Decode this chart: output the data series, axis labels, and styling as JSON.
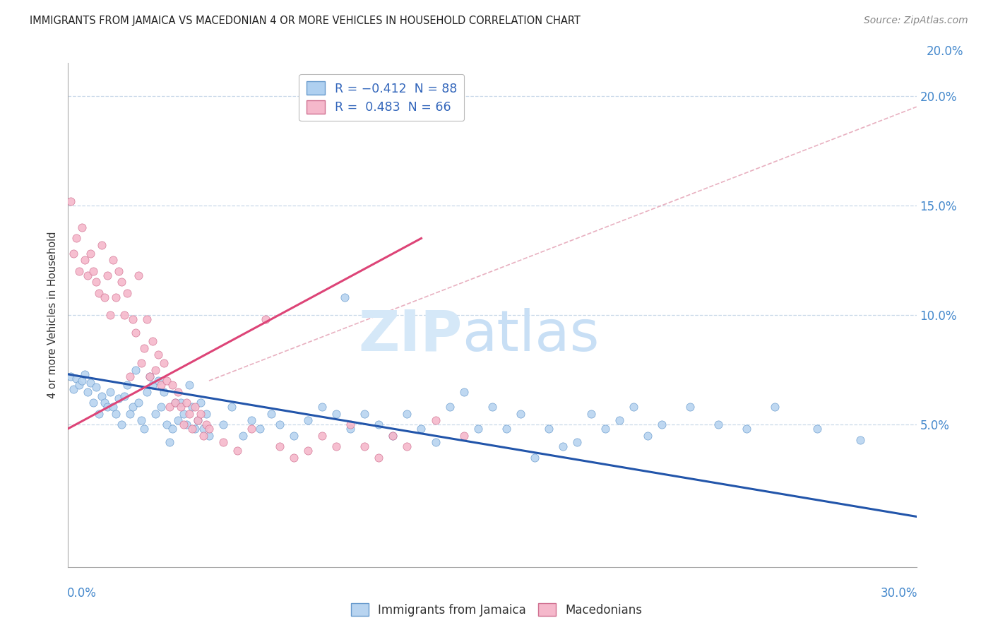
{
  "title": "IMMIGRANTS FROM JAMAICA VS MACEDONIAN 4 OR MORE VEHICLES IN HOUSEHOLD CORRELATION CHART",
  "source": "Source: ZipAtlas.com",
  "ylabel": "4 or more Vehicles in Household",
  "xlim": [
    0.0,
    0.3
  ],
  "ylim": [
    -0.015,
    0.215
  ],
  "yplot_min": 0.0,
  "yplot_max": 0.2,
  "right_ytick_vals": [
    0.2,
    0.15,
    0.1,
    0.05
  ],
  "right_ytick_labels": [
    "20.0%",
    "15.0%",
    "10.0%",
    "5.0%"
  ],
  "right_ytick_top": "20.0%",
  "legend_r1": "R = −0.412  N = 88",
  "legend_r2": "R =  0.483  N = 66",
  "legend_color1": "#afd0f0",
  "legend_color2": "#f5b8cb",
  "blue_scatter_color": "#b8d4f0",
  "pink_scatter_color": "#f5b8cb",
  "blue_edge_color": "#6699cc",
  "pink_edge_color": "#d07090",
  "blue_line_color": "#2255aa",
  "pink_line_color": "#dd4477",
  "dash_line_color": "#e8b0c0",
  "watermark_zip_color": "#d5e8f8",
  "watermark_atlas_color": "#c8dff5",
  "blue_line_x0": 0.0,
  "blue_line_x1": 0.3,
  "blue_line_y0": 0.073,
  "blue_line_y1": 0.008,
  "pink_line_x0": 0.0,
  "pink_line_x1": 0.125,
  "pink_line_y0": 0.048,
  "pink_line_y1": 0.135,
  "dash_line_x0": 0.05,
  "dash_line_x1": 0.3,
  "dash_line_y0": 0.07,
  "dash_line_y1": 0.195,
  "blue_points": [
    [
      0.001,
      0.072
    ],
    [
      0.002,
      0.066
    ],
    [
      0.003,
      0.071
    ],
    [
      0.004,
      0.068
    ],
    [
      0.005,
      0.07
    ],
    [
      0.006,
      0.073
    ],
    [
      0.007,
      0.065
    ],
    [
      0.008,
      0.069
    ],
    [
      0.009,
      0.06
    ],
    [
      0.01,
      0.067
    ],
    [
      0.011,
      0.055
    ],
    [
      0.012,
      0.063
    ],
    [
      0.013,
      0.06
    ],
    [
      0.014,
      0.058
    ],
    [
      0.015,
      0.065
    ],
    [
      0.016,
      0.058
    ],
    [
      0.017,
      0.055
    ],
    [
      0.018,
      0.062
    ],
    [
      0.019,
      0.05
    ],
    [
      0.02,
      0.063
    ],
    [
      0.021,
      0.068
    ],
    [
      0.022,
      0.055
    ],
    [
      0.023,
      0.058
    ],
    [
      0.024,
      0.075
    ],
    [
      0.025,
      0.06
    ],
    [
      0.026,
      0.052
    ],
    [
      0.027,
      0.048
    ],
    [
      0.028,
      0.065
    ],
    [
      0.029,
      0.072
    ],
    [
      0.03,
      0.068
    ],
    [
      0.031,
      0.055
    ],
    [
      0.032,
      0.07
    ],
    [
      0.033,
      0.058
    ],
    [
      0.034,
      0.065
    ],
    [
      0.035,
      0.05
    ],
    [
      0.036,
      0.042
    ],
    [
      0.037,
      0.048
    ],
    [
      0.038,
      0.06
    ],
    [
      0.039,
      0.052
    ],
    [
      0.04,
      0.06
    ],
    [
      0.041,
      0.055
    ],
    [
      0.042,
      0.05
    ],
    [
      0.043,
      0.068
    ],
    [
      0.044,
      0.058
    ],
    [
      0.045,
      0.048
    ],
    [
      0.046,
      0.052
    ],
    [
      0.047,
      0.06
    ],
    [
      0.048,
      0.048
    ],
    [
      0.049,
      0.055
    ],
    [
      0.05,
      0.045
    ],
    [
      0.055,
      0.05
    ],
    [
      0.058,
      0.058
    ],
    [
      0.062,
      0.045
    ],
    [
      0.065,
      0.052
    ],
    [
      0.068,
      0.048
    ],
    [
      0.072,
      0.055
    ],
    [
      0.075,
      0.05
    ],
    [
      0.08,
      0.045
    ],
    [
      0.085,
      0.052
    ],
    [
      0.09,
      0.058
    ],
    [
      0.095,
      0.055
    ],
    [
      0.098,
      0.108
    ],
    [
      0.1,
      0.048
    ],
    [
      0.105,
      0.055
    ],
    [
      0.11,
      0.05
    ],
    [
      0.115,
      0.045
    ],
    [
      0.12,
      0.055
    ],
    [
      0.125,
      0.048
    ],
    [
      0.13,
      0.042
    ],
    [
      0.135,
      0.058
    ],
    [
      0.14,
      0.065
    ],
    [
      0.145,
      0.048
    ],
    [
      0.15,
      0.058
    ],
    [
      0.155,
      0.048
    ],
    [
      0.16,
      0.055
    ],
    [
      0.165,
      0.035
    ],
    [
      0.17,
      0.048
    ],
    [
      0.175,
      0.04
    ],
    [
      0.18,
      0.042
    ],
    [
      0.185,
      0.055
    ],
    [
      0.19,
      0.048
    ],
    [
      0.195,
      0.052
    ],
    [
      0.2,
      0.058
    ],
    [
      0.205,
      0.045
    ],
    [
      0.21,
      0.05
    ],
    [
      0.22,
      0.058
    ],
    [
      0.23,
      0.05
    ],
    [
      0.24,
      0.048
    ],
    [
      0.25,
      0.058
    ],
    [
      0.265,
      0.048
    ],
    [
      0.28,
      0.043
    ]
  ],
  "pink_points": [
    [
      0.001,
      0.152
    ],
    [
      0.002,
      0.128
    ],
    [
      0.003,
      0.135
    ],
    [
      0.004,
      0.12
    ],
    [
      0.005,
      0.14
    ],
    [
      0.006,
      0.125
    ],
    [
      0.007,
      0.118
    ],
    [
      0.008,
      0.128
    ],
    [
      0.009,
      0.12
    ],
    [
      0.01,
      0.115
    ],
    [
      0.011,
      0.11
    ],
    [
      0.012,
      0.132
    ],
    [
      0.013,
      0.108
    ],
    [
      0.014,
      0.118
    ],
    [
      0.015,
      0.1
    ],
    [
      0.016,
      0.125
    ],
    [
      0.017,
      0.108
    ],
    [
      0.018,
      0.12
    ],
    [
      0.019,
      0.115
    ],
    [
      0.02,
      0.1
    ],
    [
      0.021,
      0.11
    ],
    [
      0.022,
      0.072
    ],
    [
      0.023,
      0.098
    ],
    [
      0.024,
      0.092
    ],
    [
      0.025,
      0.118
    ],
    [
      0.026,
      0.078
    ],
    [
      0.027,
      0.085
    ],
    [
      0.028,
      0.098
    ],
    [
      0.029,
      0.072
    ],
    [
      0.03,
      0.088
    ],
    [
      0.031,
      0.075
    ],
    [
      0.032,
      0.082
    ],
    [
      0.033,
      0.068
    ],
    [
      0.034,
      0.078
    ],
    [
      0.035,
      0.07
    ],
    [
      0.036,
      0.058
    ],
    [
      0.037,
      0.068
    ],
    [
      0.038,
      0.06
    ],
    [
      0.039,
      0.065
    ],
    [
      0.04,
      0.058
    ],
    [
      0.041,
      0.05
    ],
    [
      0.042,
      0.06
    ],
    [
      0.043,
      0.055
    ],
    [
      0.044,
      0.048
    ],
    [
      0.045,
      0.058
    ],
    [
      0.046,
      0.052
    ],
    [
      0.047,
      0.055
    ],
    [
      0.048,
      0.045
    ],
    [
      0.049,
      0.05
    ],
    [
      0.05,
      0.048
    ],
    [
      0.055,
      0.042
    ],
    [
      0.06,
      0.038
    ],
    [
      0.065,
      0.048
    ],
    [
      0.07,
      0.098
    ],
    [
      0.075,
      0.04
    ],
    [
      0.08,
      0.035
    ],
    [
      0.085,
      0.038
    ],
    [
      0.09,
      0.045
    ],
    [
      0.095,
      0.04
    ],
    [
      0.1,
      0.05
    ],
    [
      0.105,
      0.04
    ],
    [
      0.11,
      0.035
    ],
    [
      0.115,
      0.045
    ],
    [
      0.12,
      0.04
    ],
    [
      0.13,
      0.052
    ],
    [
      0.14,
      0.045
    ]
  ]
}
